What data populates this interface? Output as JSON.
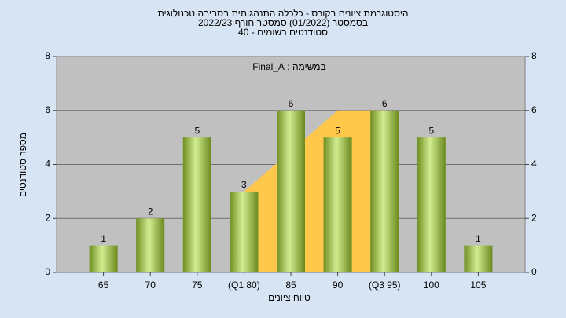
{
  "chart_data": {
    "type": "bar",
    "title": "היסטוגרמת ציונים בקורס - כלכלה התנהגותית בסביבה טכנולוגית",
    "subtitle": "בסמסטר (01/2022)  סמסטר חורף 2022/23",
    "subtitle2": "סטודנטים רשומים - 40",
    "annotation": "במשימה : Final_A",
    "x_label": "טווח ציונים",
    "y_label": "מספר סטודנטים",
    "categories": [
      "65",
      "70",
      "75",
      "(Q1 80)",
      "85",
      "90",
      "(Q3 95)",
      "100",
      "105"
    ],
    "values": [
      1,
      2,
      5,
      3,
      6,
      5,
      6,
      5,
      1
    ],
    "color": "#8fb042",
    "area": {
      "color": "#ffc84a",
      "values": [
        null,
        null,
        null,
        3,
        4.5,
        6,
        6,
        null,
        null
      ]
    },
    "ylim": [
      0,
      8
    ],
    "yticks": [
      0,
      2,
      4,
      6,
      8
    ],
    "y2lim": [
      0,
      8
    ],
    "y2ticks": [
      0,
      2,
      4,
      6,
      8
    ],
    "grid": true
  }
}
